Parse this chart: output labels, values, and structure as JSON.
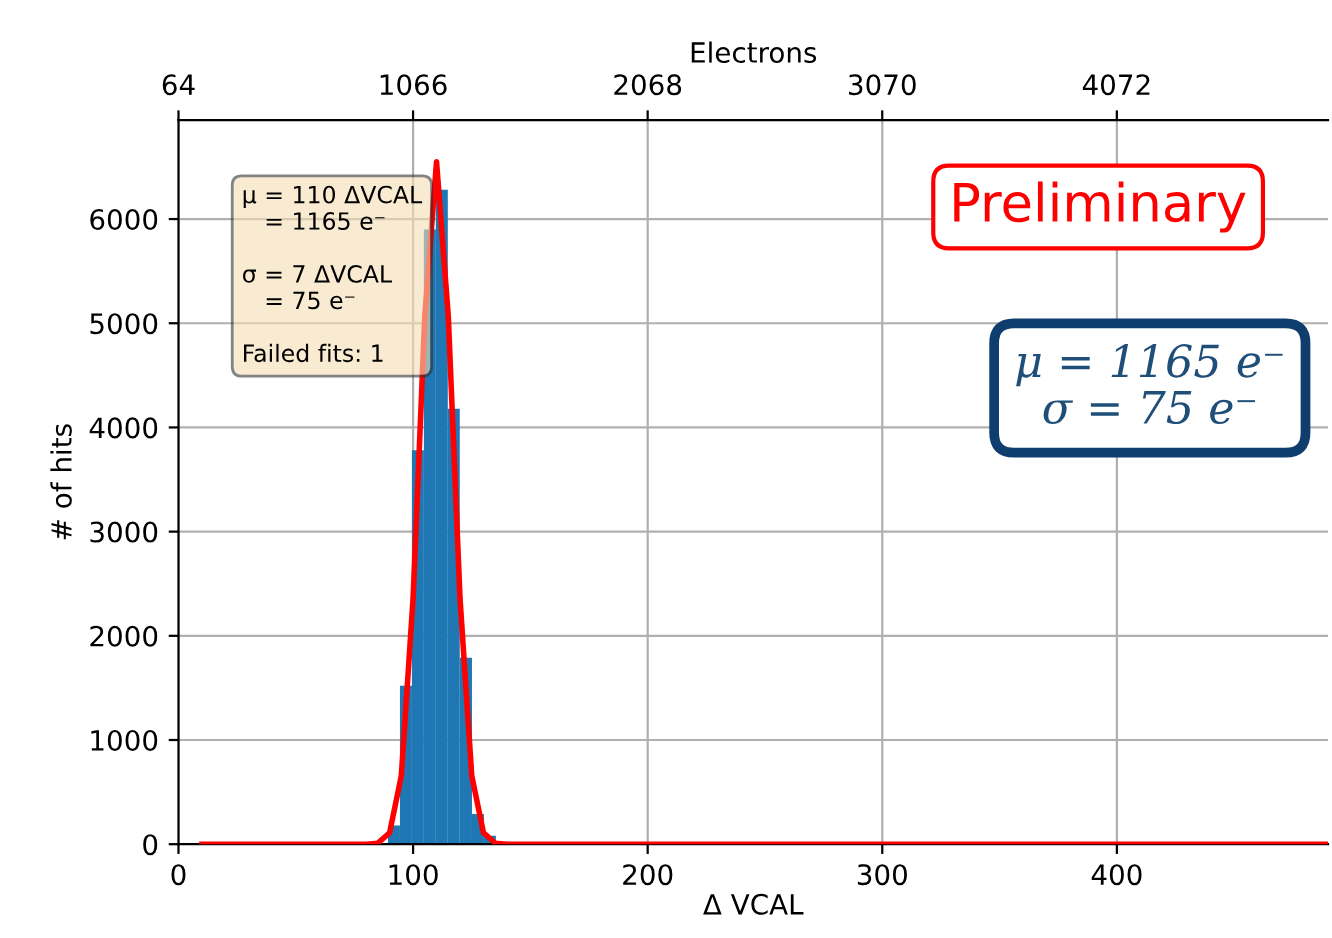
{
  "chart_data": {
    "type": "histogram",
    "xlabel": "Δ VCAL",
    "ylabel": "# of hits",
    "x2label": "Electrons",
    "xlim": [
      0,
      490
    ],
    "xticks": [
      0,
      100,
      200,
      300,
      400
    ],
    "x2lim": [
      64,
      4974
    ],
    "x2ticks": [
      64,
      1066,
      2068,
      3070,
      4072
    ],
    "ylim": [
      0,
      6950
    ],
    "yticks": [
      0,
      1000,
      2000,
      3000,
      4000,
      5000,
      6000
    ],
    "grid": true,
    "series": [
      {
        "color": "#1f77b4",
        "bins": [
          89.3,
          94.4,
          99.5,
          104.6,
          109.7,
          114.8,
          119.9,
          125.1,
          130.2,
          135.3
        ],
        "values": [
          180,
          1520,
          3780,
          5900,
          6280,
          4180,
          1790,
          290,
          80
        ]
      },
      {
        "type": "line",
        "color": "#ff0000",
        "x": [
          10,
          80,
          85,
          90,
          95,
          100,
          105,
          110,
          115,
          120,
          125,
          130,
          135,
          140,
          490
        ],
        "values": [
          0,
          0,
          10,
          110,
          660,
          2360,
          5070,
          6550,
          5070,
          2360,
          660,
          110,
          10,
          0,
          0
        ]
      }
    ],
    "annotations": [
      "μ = 110 ΔVCAL\n   = 1165 e⁻\n\nσ = 7 ΔVCAL\n   = 75 e⁻\n\nFailed fits: 1",
      "Preliminary",
      "μ = 1165 e⁻\nσ = 75 e⁻"
    ]
  }
}
